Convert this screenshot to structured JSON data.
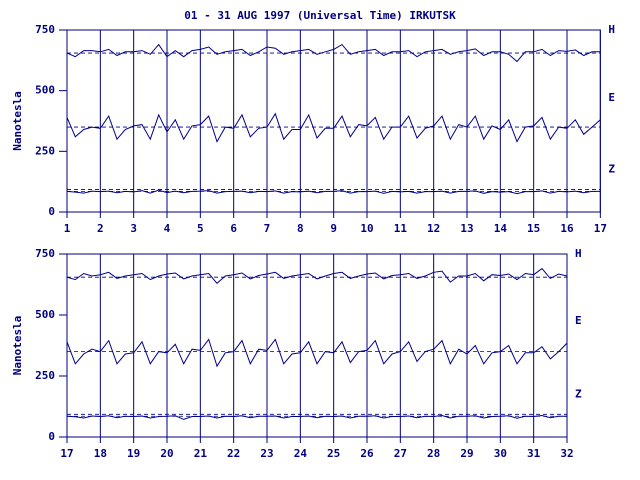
{
  "chart_data": [
    {
      "type": "line",
      "title": "01 - 31 AUG 1997 (Universal Time) IRKUTSK",
      "y_label": "Nanotesla",
      "xlim": [
        1,
        17
      ],
      "xticks": [
        1,
        2,
        3,
        4,
        5,
        6,
        7,
        8,
        9,
        10,
        11,
        12,
        13,
        14,
        15,
        16,
        17
      ],
      "ylim": [
        0,
        750
      ],
      "yticks": [
        0,
        250,
        500,
        750
      ],
      "grid": true,
      "reference_lines": [
        655,
        350,
        93,
        85
      ],
      "x": [
        1,
        1.25,
        1.5,
        1.75,
        2,
        2.25,
        2.5,
        2.75,
        3,
        3.25,
        3.5,
        3.75,
        4,
        4.25,
        4.5,
        4.75,
        5,
        5.25,
        5.5,
        5.75,
        6,
        6.25,
        6.5,
        6.75,
        7,
        7.25,
        7.5,
        7.75,
        8,
        8.25,
        8.5,
        8.75,
        9,
        9.25,
        9.5,
        9.75,
        10,
        10.25,
        10.5,
        10.75,
        11,
        11.25,
        11.5,
        11.75,
        12,
        12.25,
        12.5,
        12.75,
        13,
        13.25,
        13.5,
        13.75,
        14,
        14.25,
        14.5,
        14.75,
        15,
        15.25,
        15.5,
        15.75,
        16,
        16.25,
        16.5,
        16.75,
        17
      ],
      "series": [
        {
          "name": "H",
          "color": "#00008b",
          "values": [
            655,
            640,
            665,
            665,
            660,
            670,
            645,
            660,
            660,
            665,
            650,
            690,
            640,
            665,
            640,
            665,
            670,
            680,
            650,
            660,
            665,
            670,
            645,
            660,
            680,
            675,
            650,
            660,
            665,
            670,
            650,
            660,
            670,
            690,
            650,
            660,
            665,
            670,
            645,
            660,
            660,
            665,
            640,
            660,
            665,
            670,
            650,
            660,
            665,
            672,
            645,
            660,
            660,
            650,
            620,
            660,
            660,
            670,
            645,
            665,
            662,
            668,
            645,
            660,
            660
          ]
        },
        {
          "name": "E",
          "color": "#00008b",
          "values": [
            390,
            310,
            340,
            350,
            345,
            395,
            300,
            340,
            355,
            360,
            300,
            400,
            330,
            380,
            300,
            355,
            360,
            395,
            290,
            350,
            345,
            400,
            310,
            345,
            350,
            405,
            300,
            340,
            340,
            400,
            305,
            345,
            345,
            395,
            310,
            360,
            355,
            390,
            300,
            350,
            350,
            395,
            305,
            345,
            355,
            395,
            300,
            360,
            350,
            395,
            300,
            355,
            340,
            380,
            290,
            350,
            355,
            390,
            300,
            350,
            345,
            380,
            320,
            350,
            380
          ]
        },
        {
          "name": "Z",
          "color": "#00008b",
          "values": [
            85,
            82,
            78,
            86,
            84,
            86,
            79,
            85,
            83,
            88,
            78,
            90,
            80,
            86,
            79,
            85,
            86,
            88,
            78,
            84,
            85,
            86,
            79,
            85,
            84,
            87,
            78,
            84,
            83,
            86,
            79,
            85,
            85,
            88,
            78,
            84,
            84,
            86,
            77,
            85,
            83,
            85,
            78,
            84,
            84,
            86,
            78,
            85,
            85,
            87,
            77,
            84,
            82,
            84,
            76,
            84,
            84,
            87,
            78,
            85,
            83,
            86,
            79,
            85,
            85
          ]
        }
      ]
    },
    {
      "type": "line",
      "y_label": "Nanotesla",
      "xlim": [
        17,
        32
      ],
      "xticks": [
        17,
        18,
        19,
        20,
        21,
        22,
        23,
        24,
        25,
        26,
        27,
        28,
        29,
        30,
        31,
        32
      ],
      "ylim": [
        0,
        750
      ],
      "yticks": [
        0,
        250,
        500,
        750
      ],
      "grid": true,
      "reference_lines": [
        655,
        350,
        93,
        85
      ],
      "x": [
        17,
        17.25,
        17.5,
        17.75,
        18,
        18.25,
        18.5,
        18.75,
        19,
        19.25,
        19.5,
        19.75,
        20,
        20.25,
        20.5,
        20.75,
        21,
        21.25,
        21.5,
        21.75,
        22,
        22.25,
        22.5,
        22.75,
        23,
        23.25,
        23.5,
        23.75,
        24,
        24.25,
        24.5,
        24.75,
        25,
        25.25,
        25.5,
        25.75,
        26,
        26.25,
        26.5,
        26.75,
        27,
        27.25,
        27.5,
        27.75,
        28,
        28.25,
        28.5,
        28.75,
        29,
        29.25,
        29.5,
        29.75,
        30,
        30.25,
        30.5,
        30.75,
        31,
        31.25,
        31.5,
        31.75,
        32
      ],
      "series": [
        {
          "name": "H",
          "color": "#00008b",
          "values": [
            655,
            645,
            670,
            660,
            665,
            675,
            650,
            660,
            665,
            670,
            645,
            660,
            668,
            672,
            648,
            660,
            665,
            670,
            630,
            660,
            665,
            672,
            648,
            662,
            668,
            675,
            650,
            660,
            665,
            670,
            648,
            660,
            670,
            675,
            650,
            660,
            668,
            672,
            648,
            662,
            665,
            670,
            650,
            660,
            675,
            680,
            635,
            660,
            660,
            670,
            640,
            665,
            662,
            668,
            645,
            670,
            665,
            690,
            650,
            668,
            660
          ]
        },
        {
          "name": "E",
          "color": "#00008b",
          "values": [
            390,
            300,
            340,
            360,
            350,
            395,
            300,
            340,
            345,
            390,
            300,
            350,
            345,
            380,
            300,
            360,
            355,
            400,
            290,
            345,
            350,
            395,
            300,
            360,
            355,
            400,
            300,
            340,
            345,
            390,
            300,
            350,
            345,
            390,
            305,
            350,
            355,
            395,
            300,
            340,
            350,
            390,
            310,
            350,
            360,
            395,
            300,
            360,
            340,
            375,
            300,
            345,
            350,
            375,
            300,
            345,
            345,
            370,
            320,
            350,
            385
          ]
        },
        {
          "name": "Z",
          "color": "#00008b",
          "values": [
            85,
            83,
            78,
            86,
            84,
            87,
            79,
            85,
            84,
            86,
            78,
            84,
            85,
            87,
            72,
            84,
            84,
            86,
            78,
            85,
            84,
            87,
            79,
            85,
            85,
            86,
            78,
            84,
            84,
            86,
            79,
            85,
            84,
            86,
            78,
            85,
            85,
            87,
            78,
            84,
            84,
            86,
            79,
            85,
            84,
            88,
            78,
            85,
            85,
            87,
            78,
            84,
            85,
            87,
            77,
            85,
            84,
            88,
            79,
            85,
            85
          ]
        }
      ]
    }
  ]
}
